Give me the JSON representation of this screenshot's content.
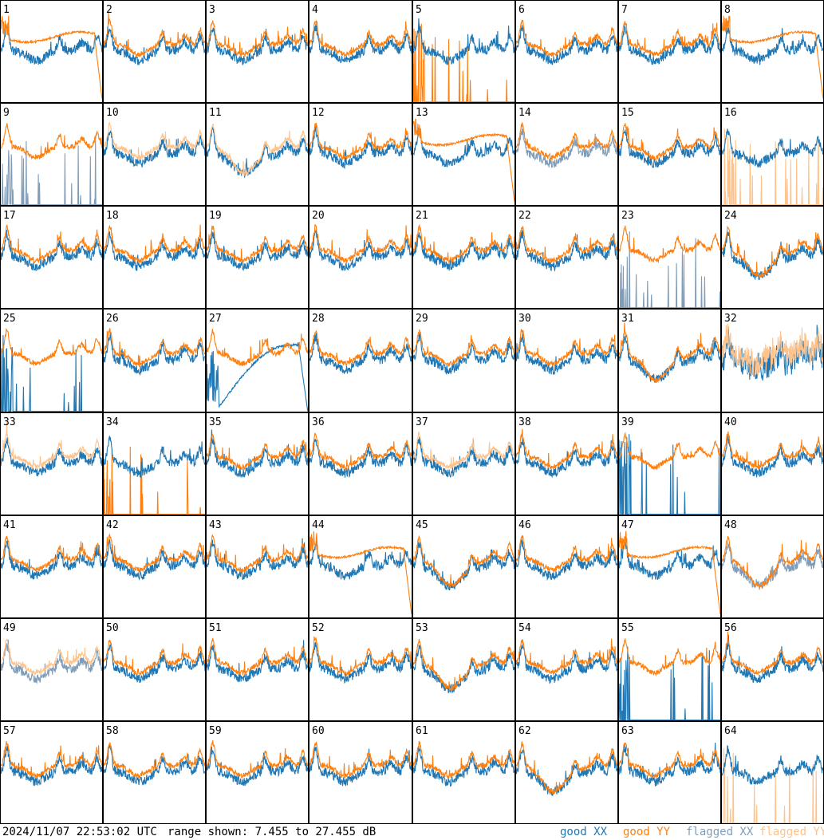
{
  "footer": {
    "timestamp": "2024/11/07 22:53:02 UTC",
    "range_text": "range shown: 7.455 to 27.455 dB"
  },
  "legend": [
    {
      "key": "good_xx",
      "label": "good XX",
      "color": "#1f77b4"
    },
    {
      "key": "good_yy",
      "label": "good YY",
      "color": "#ff7f0e"
    },
    {
      "key": "flagged_xx",
      "label": "flagged XX",
      "color": "#7f9db9"
    },
    {
      "key": "flagged_yy",
      "label": "flagged YY",
      "color": "#ffc28a"
    }
  ],
  "chart_data": {
    "type": "line",
    "ylim": [
      7.455,
      27.455
    ],
    "grid": {
      "rows": 8,
      "cols": 8
    },
    "tiles": [
      {
        "label": "1",
        "xx": "good",
        "yy": "good",
        "profile": "drop"
      },
      {
        "label": "2",
        "xx": "good",
        "yy": "good",
        "profile": "normal"
      },
      {
        "label": "3",
        "xx": "good",
        "yy": "good",
        "profile": "normal"
      },
      {
        "label": "4",
        "xx": "good",
        "yy": "good",
        "profile": "normal"
      },
      {
        "label": "5",
        "xx": "good",
        "yy": "good",
        "profile": "spikes-yy"
      },
      {
        "label": "6",
        "xx": "good",
        "yy": "good",
        "profile": "normal"
      },
      {
        "label": "7",
        "xx": "good",
        "yy": "good",
        "profile": "normal"
      },
      {
        "label": "8",
        "xx": "good",
        "yy": "good",
        "profile": "drop"
      },
      {
        "label": "9",
        "xx": "flagged",
        "yy": "good",
        "profile": "spikes-xx"
      },
      {
        "label": "10",
        "xx": "good",
        "yy": "flagged",
        "profile": "normal"
      },
      {
        "label": "11",
        "xx": "good",
        "yy": "flagged",
        "profile": "dip"
      },
      {
        "label": "12",
        "xx": "good",
        "yy": "good",
        "profile": "normal"
      },
      {
        "label": "13",
        "xx": "good",
        "yy": "good",
        "profile": "drop"
      },
      {
        "label": "14",
        "xx": "flagged",
        "yy": "good",
        "profile": "normal"
      },
      {
        "label": "15",
        "xx": "good",
        "yy": "good",
        "profile": "normal"
      },
      {
        "label": "16",
        "xx": "good",
        "yy": "flagged",
        "profile": "spikes-yy"
      },
      {
        "label": "17",
        "xx": "good",
        "yy": "good",
        "profile": "normal"
      },
      {
        "label": "18",
        "xx": "good",
        "yy": "good",
        "profile": "normal"
      },
      {
        "label": "19",
        "xx": "good",
        "yy": "good",
        "profile": "normal"
      },
      {
        "label": "20",
        "xx": "good",
        "yy": "good",
        "profile": "normal"
      },
      {
        "label": "21",
        "xx": "good",
        "yy": "good",
        "profile": "normal"
      },
      {
        "label": "22",
        "xx": "good",
        "yy": "good",
        "profile": "normal"
      },
      {
        "label": "23",
        "xx": "flagged",
        "yy": "good",
        "profile": "spikes-xx"
      },
      {
        "label": "24",
        "xx": "good",
        "yy": "good",
        "profile": "dip"
      },
      {
        "label": "25",
        "xx": "good",
        "yy": "good",
        "profile": "spikes-xx"
      },
      {
        "label": "26",
        "xx": "good",
        "yy": "good",
        "profile": "normal"
      },
      {
        "label": "27",
        "xx": "good",
        "yy": "good",
        "profile": "arc"
      },
      {
        "label": "28",
        "xx": "good",
        "yy": "good",
        "profile": "normal"
      },
      {
        "label": "29",
        "xx": "good",
        "yy": "good",
        "profile": "normal"
      },
      {
        "label": "30",
        "xx": "good",
        "yy": "good",
        "profile": "normal"
      },
      {
        "label": "31",
        "xx": "good",
        "yy": "good",
        "profile": "dip"
      },
      {
        "label": "32",
        "xx": "good",
        "yy": "flagged",
        "profile": "noisy"
      },
      {
        "label": "33",
        "xx": "good",
        "yy": "flagged",
        "profile": "normal"
      },
      {
        "label": "34",
        "xx": "good",
        "yy": "good",
        "profile": "spikes-yy"
      },
      {
        "label": "35",
        "xx": "good",
        "yy": "good",
        "profile": "normal"
      },
      {
        "label": "36",
        "xx": "good",
        "yy": "good",
        "profile": "normal"
      },
      {
        "label": "37",
        "xx": "good",
        "yy": "flagged",
        "profile": "normal"
      },
      {
        "label": "38",
        "xx": "good",
        "yy": "good",
        "profile": "normal"
      },
      {
        "label": "39",
        "xx": "good",
        "yy": "good",
        "profile": "spikes-xx"
      },
      {
        "label": "40",
        "xx": "good",
        "yy": "good",
        "profile": "normal"
      },
      {
        "label": "41",
        "xx": "good",
        "yy": "good",
        "profile": "normal"
      },
      {
        "label": "42",
        "xx": "good",
        "yy": "good",
        "profile": "normal"
      },
      {
        "label": "43",
        "xx": "good",
        "yy": "good",
        "profile": "normal"
      },
      {
        "label": "44",
        "xx": "good",
        "yy": "good",
        "profile": "drop"
      },
      {
        "label": "45",
        "xx": "good",
        "yy": "good",
        "profile": "dip"
      },
      {
        "label": "46",
        "xx": "good",
        "yy": "good",
        "profile": "normal"
      },
      {
        "label": "47",
        "xx": "good",
        "yy": "good",
        "profile": "drop"
      },
      {
        "label": "48",
        "xx": "flagged",
        "yy": "good",
        "profile": "dip"
      },
      {
        "label": "49",
        "xx": "flagged",
        "yy": "flagged",
        "profile": "normal"
      },
      {
        "label": "50",
        "xx": "good",
        "yy": "good",
        "profile": "normal"
      },
      {
        "label": "51",
        "xx": "good",
        "yy": "good",
        "profile": "normal"
      },
      {
        "label": "52",
        "xx": "good",
        "yy": "good",
        "profile": "normal"
      },
      {
        "label": "53",
        "xx": "good",
        "yy": "good",
        "profile": "dip"
      },
      {
        "label": "54",
        "xx": "good",
        "yy": "good",
        "profile": "normal"
      },
      {
        "label": "55",
        "xx": "good",
        "yy": "good",
        "profile": "spikes-xx"
      },
      {
        "label": "56",
        "xx": "good",
        "yy": "good",
        "profile": "normal"
      },
      {
        "label": "57",
        "xx": "good",
        "yy": "good",
        "profile": "normal"
      },
      {
        "label": "58",
        "xx": "good",
        "yy": "good",
        "profile": "normal"
      },
      {
        "label": "59",
        "xx": "good",
        "yy": "good",
        "profile": "normal"
      },
      {
        "label": "60",
        "xx": "good",
        "yy": "good",
        "profile": "normal"
      },
      {
        "label": "61",
        "xx": "good",
        "yy": "good",
        "profile": "normal"
      },
      {
        "label": "62",
        "xx": "good",
        "yy": "good",
        "profile": "dip"
      },
      {
        "label": "63",
        "xx": "good",
        "yy": "good",
        "profile": "normal"
      },
      {
        "label": "64",
        "xx": "good",
        "yy": "flagged",
        "profile": "spikes-yy"
      }
    ]
  }
}
